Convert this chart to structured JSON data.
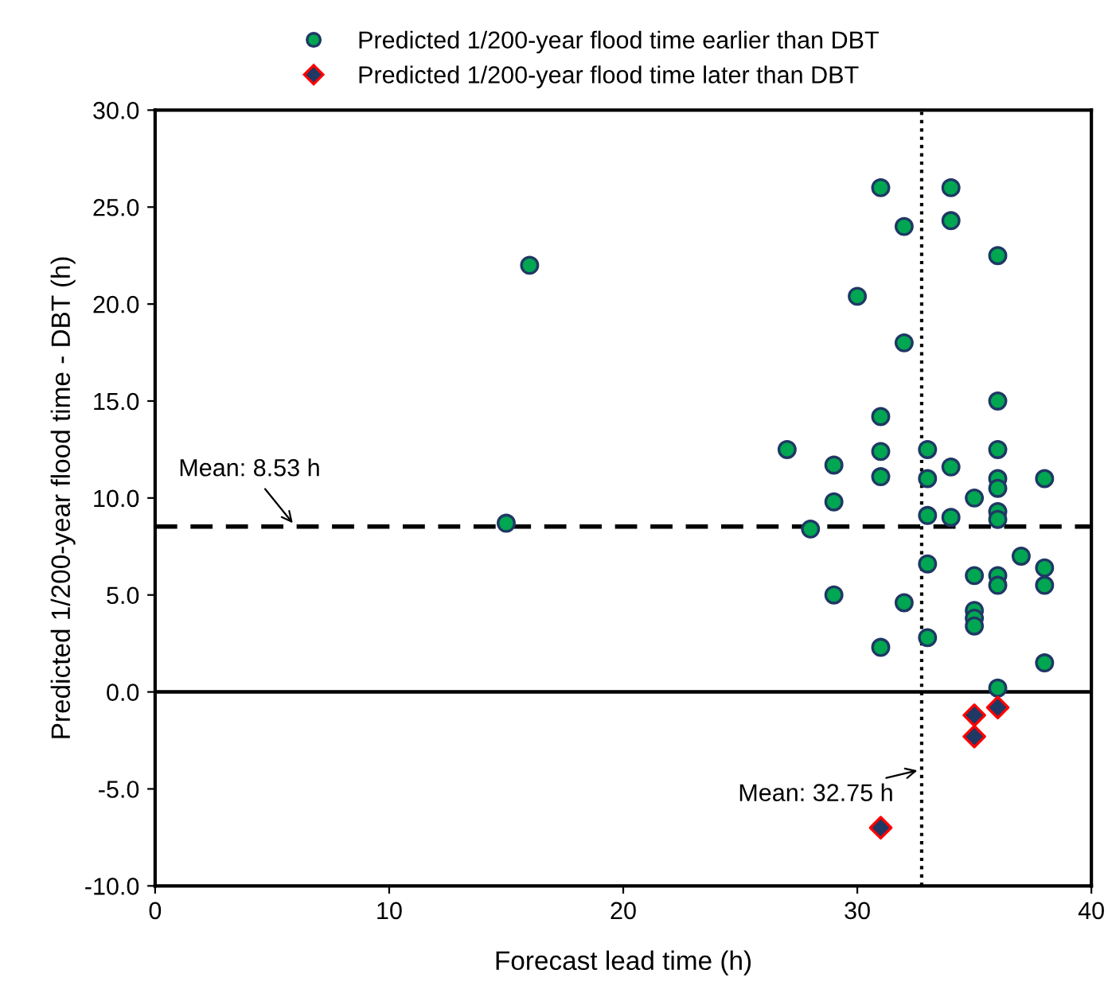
{
  "chart_data": {
    "type": "scatter",
    "xlabel": "Forecast lead time (h)",
    "ylabel": "Predicted 1/200-year flood time - DBT (h)",
    "xlim": [
      0,
      40
    ],
    "xticks": [
      0,
      10,
      20,
      30,
      40
    ],
    "ylim": [
      -10,
      30
    ],
    "yticks": [
      {
        "value": -10,
        "label": "-10.0"
      },
      {
        "value": -5,
        "label": "-5.0"
      },
      {
        "value": 0,
        "label": "0.0"
      },
      {
        "value": 5,
        "label": "5.0"
      },
      {
        "value": 10,
        "label": "10.0"
      },
      {
        "value": 15,
        "label": "15.0"
      },
      {
        "value": 20,
        "label": "20.0"
      },
      {
        "value": 25,
        "label": "25.0"
      },
      {
        "value": 30,
        "label": "30.0"
      }
    ],
    "grid": false,
    "legend": "top",
    "series": [
      {
        "name": "Predicted 1/200-year flood time earlier than DBT",
        "color": "#00a651",
        "marker": "circle",
        "x": [
          15,
          16,
          27,
          28,
          29,
          29,
          29,
          30,
          31,
          31,
          31,
          31,
          31,
          32,
          32,
          32,
          33,
          33,
          33,
          33,
          33,
          34,
          34,
          34,
          34,
          35,
          35,
          35,
          35,
          35,
          36,
          36,
          36,
          36,
          36,
          36,
          36,
          36,
          36,
          36,
          37,
          38,
          38,
          38,
          38
        ],
        "values": [
          8.7,
          22.0,
          12.5,
          8.4,
          11.7,
          9.8,
          5.0,
          20.4,
          26.0,
          14.2,
          12.4,
          11.1,
          2.3,
          24.0,
          18.0,
          4.6,
          12.5,
          11.0,
          9.1,
          6.6,
          2.8,
          26.0,
          24.3,
          11.6,
          9.0,
          10.0,
          6.0,
          4.2,
          3.8,
          3.4,
          22.5,
          15.0,
          12.5,
          11.0,
          10.5,
          9.3,
          8.9,
          6.0,
          5.5,
          0.2,
          7.0,
          11.0,
          6.4,
          5.5,
          1.5
        ]
      },
      {
        "name": "Predicted 1/200-year flood time later than DBT",
        "color": "#203864",
        "marker": "diamond",
        "x": [
          31,
          35,
          35,
          36
        ],
        "values": [
          -7.0,
          -1.2,
          -2.3,
          -0.8
        ]
      }
    ],
    "ref_lines": [
      {
        "axis": "y",
        "value": 0,
        "line_style": "solid",
        "color": "#000000"
      },
      {
        "axis": "y",
        "value": 8.53,
        "label": "Mean: 8.53 h",
        "line_style": "dashed",
        "color": "#000000"
      },
      {
        "axis": "x",
        "value": 32.75,
        "label": "Mean: 32.75 h",
        "line_style": "dotted",
        "color": "#000000"
      }
    ]
  }
}
